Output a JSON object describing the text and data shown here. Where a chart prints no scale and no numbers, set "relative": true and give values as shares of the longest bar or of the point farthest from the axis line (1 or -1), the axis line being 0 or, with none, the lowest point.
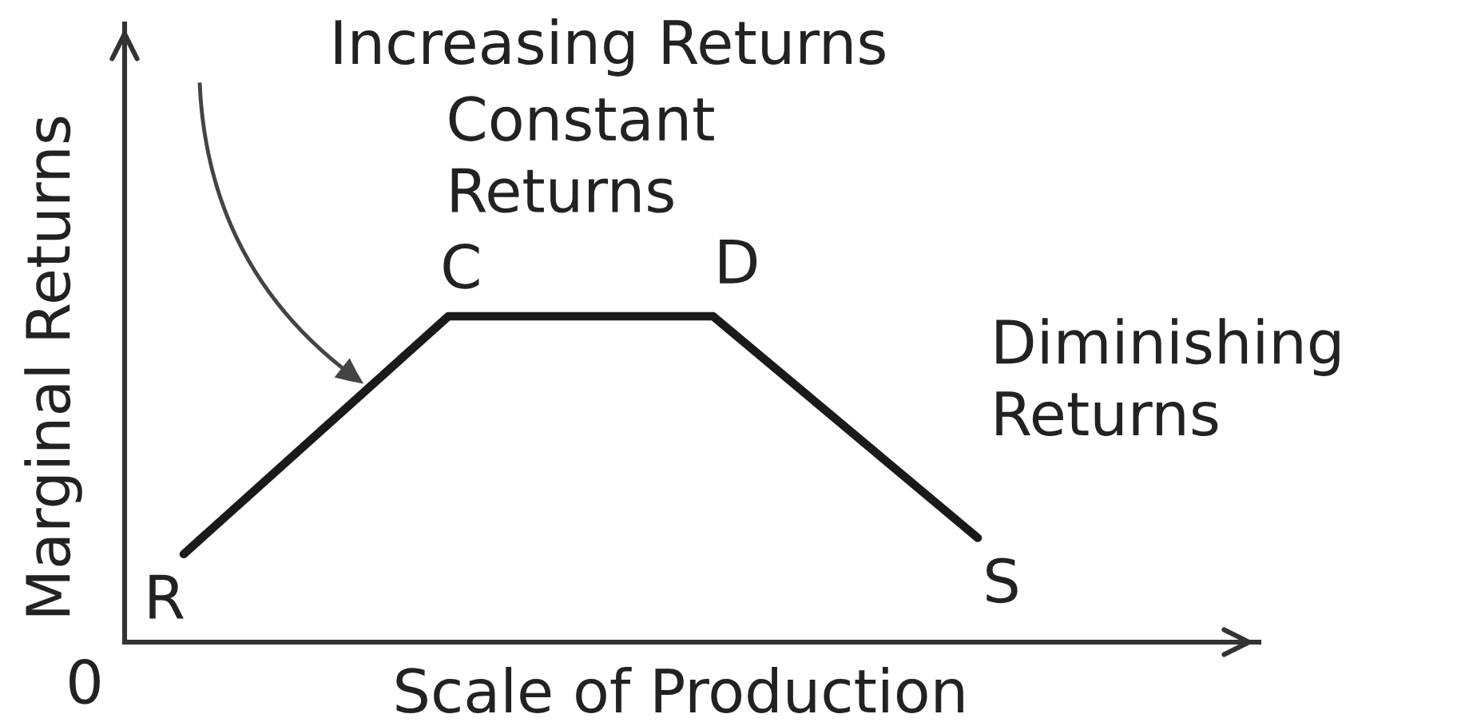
{
  "chart_data": {
    "type": "line",
    "relative": true,
    "line_style": "solid",
    "categories": [
      null,
      null,
      null,
      null
    ],
    "series": [
      {
        "color": "#1a1a1a",
        "values": [
          0.27,
          1,
          1,
          0.32
        ]
      }
    ],
    "xlabel": "Scale of Production",
    "ylabel": "Marginal Returns",
    "annotations": [
      "Increasing Returns",
      "Constant\nReturns",
      "Diminishing\nReturns",
      "R",
      "C",
      "D",
      "S",
      "0"
    ]
  }
}
